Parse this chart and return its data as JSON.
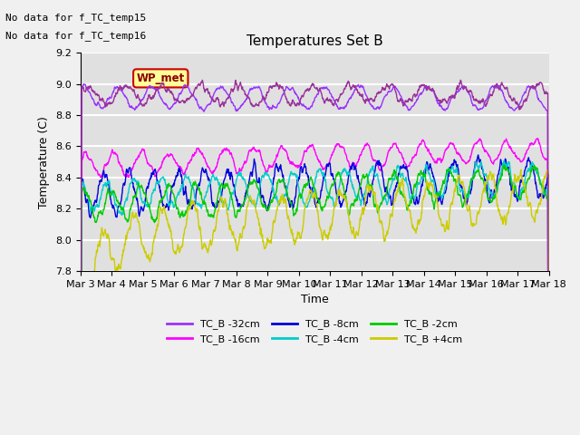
{
  "title": "Temperatures Set B",
  "xlabel": "Time",
  "ylabel": "Temperature (C)",
  "ylim": [
    7.8,
    9.2
  ],
  "xlim_days": [
    0,
    15
  ],
  "annotations": [
    "No data for f_TC_temp15",
    "No data for f_TC_temp16"
  ],
  "wp_met_label": "WP_met",
  "wp_met_color": "#aa00aa",
  "legend_entries": [
    {
      "label": "TC_B -32cm",
      "color": "#aa00ff"
    },
    {
      "label": "TC_B -16cm",
      "color": "#ff00ff"
    },
    {
      "label": "TC_B -8cm",
      "color": "#0000cc"
    },
    {
      "label": "TC_B -4cm",
      "color": "#00cccc"
    },
    {
      "label": "TC_B -2cm",
      "color": "#00cc00"
    },
    {
      "label": "TC_B +4cm",
      "color": "#cccc00"
    }
  ],
  "xtick_labels": [
    "Mar 3",
    "Mar 4",
    "Mar 5",
    "Mar 6",
    "Mar 7",
    "Mar 8",
    "Mar 9",
    "Mar 10",
    "Mar 11",
    "Mar 12",
    "Mar 13",
    "Mar 14",
    "Mar 15",
    "Mar 16",
    "Mar 17",
    "Mar 18"
  ],
  "background_color": "#e8e8e8",
  "plot_bg_color": "#e0e0e0",
  "grid_color": "#ffffff",
  "seed": 42
}
